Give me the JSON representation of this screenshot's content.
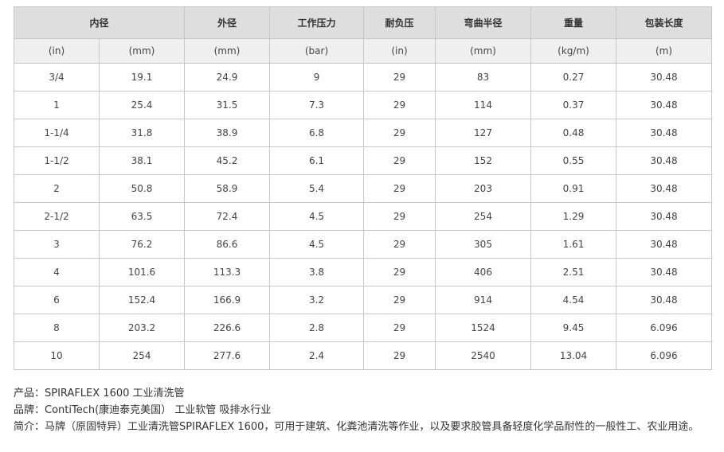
{
  "table": {
    "headers": [
      "内径",
      "外径",
      "工作压力",
      "耐负压",
      "弯曲半径",
      "重量",
      "包装长度"
    ],
    "units": [
      "(in)",
      "(mm)",
      "(mm)",
      "(bar)",
      "(in)",
      "(mm)",
      "(kg/m)",
      "(m)"
    ],
    "rows": [
      [
        "3/4",
        "19.1",
        "24.9",
        "9",
        "29",
        "83",
        "0.27",
        "30.48"
      ],
      [
        "1",
        "25.4",
        "31.5",
        "7.3",
        "29",
        "114",
        "0.37",
        "30.48"
      ],
      [
        "1-1/4",
        "31.8",
        "38.9",
        "6.8",
        "29",
        "127",
        "0.48",
        "30.48"
      ],
      [
        "1-1/2",
        "38.1",
        "45.2",
        "6.1",
        "29",
        "152",
        "0.55",
        "30.48"
      ],
      [
        "2",
        "50.8",
        "58.9",
        "5.4",
        "29",
        "203",
        "0.91",
        "30.48"
      ],
      [
        "2-1/2",
        "63.5",
        "72.4",
        "4.5",
        "29",
        "254",
        "1.29",
        "30.48"
      ],
      [
        "3",
        "76.2",
        "86.6",
        "4.5",
        "29",
        "305",
        "1.61",
        "30.48"
      ],
      [
        "4",
        "101.6",
        "113.3",
        "3.8",
        "29",
        "406",
        "2.51",
        "30.48"
      ],
      [
        "6",
        "152.4",
        "166.9",
        "3.2",
        "29",
        "914",
        "4.54",
        "30.48"
      ],
      [
        "8",
        "203.2",
        "226.6",
        "2.8",
        "29",
        "1524",
        "9.45",
        "6.096"
      ],
      [
        "10",
        "254",
        "277.6",
        "2.4",
        "29",
        "2540",
        "13.04",
        "6.096"
      ]
    ]
  },
  "info": {
    "product": "产品：SPIRAFLEX 1600 工业清洗管",
    "brand": "品牌：ContiTech(康迪泰克美国） 工业软管 吸排水行业",
    "intro": "简介：马牌（原固特异）工业清洗管SPIRAFLEX 1600，可用于建筑、化粪池清洗等作业，以及要求胶管具备轻度化学品耐性的一般性工、农业用途。"
  }
}
